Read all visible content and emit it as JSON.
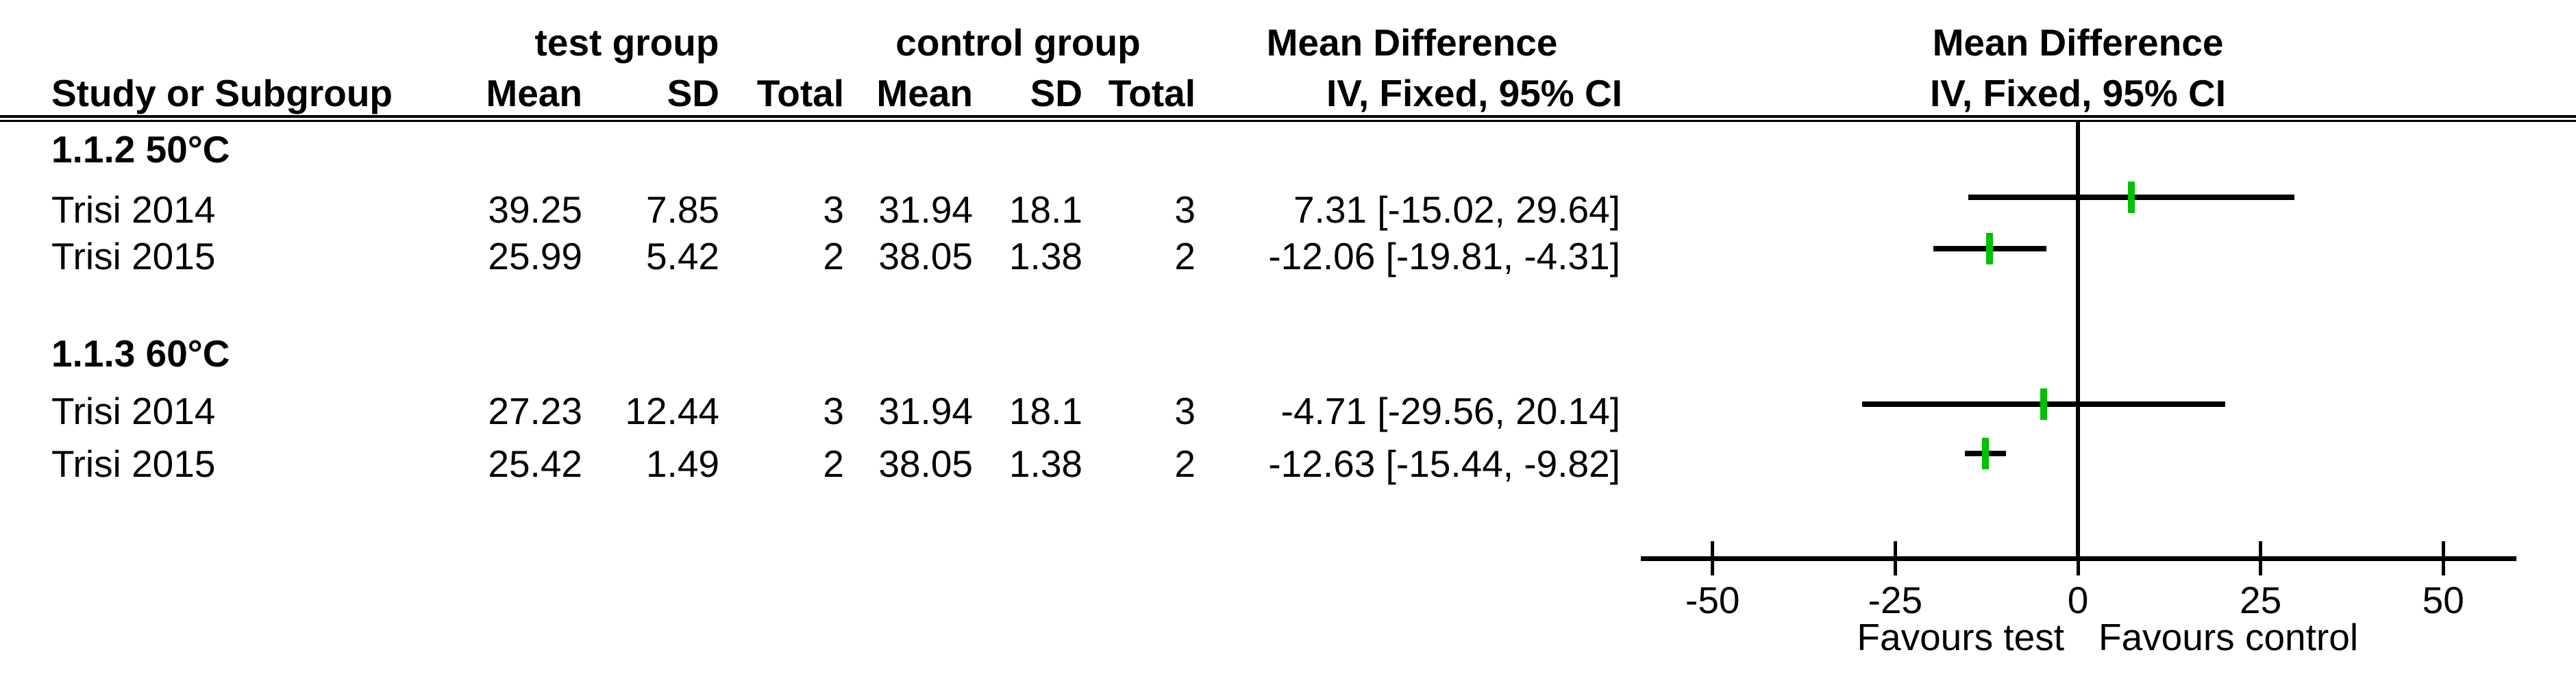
{
  "header": {
    "group_test": "test group",
    "group_control": "control group",
    "effect_left": "Mean Difference",
    "effect_right": "Mean Difference",
    "col_study": "Study or Subgroup",
    "col_mean": "Mean",
    "col_sd": "SD",
    "col_total": "Total",
    "col_ci_left": "IV, Fixed, 95% CI",
    "col_ci_right": "IV, Fixed, 95% CI"
  },
  "subgroups": [
    {
      "label": "1.1.2 50°C",
      "rows": [
        {
          "study": "Trisi 2014",
          "test_mean": "39.25",
          "test_sd": "7.85",
          "test_total": "3",
          "ctrl_mean": "31.94",
          "ctrl_sd": "18.1",
          "ctrl_total": "3",
          "ci": "7.31 [-15.02, 29.64]"
        },
        {
          "study": "Trisi 2015",
          "test_mean": "25.99",
          "test_sd": "5.42",
          "test_total": "2",
          "ctrl_mean": "38.05",
          "ctrl_sd": "1.38",
          "ctrl_total": "2",
          "ci": "-12.06 [-19.81, -4.31]"
        }
      ]
    },
    {
      "label": "1.1.3 60°C",
      "rows": [
        {
          "study": "Trisi 2014",
          "test_mean": "27.23",
          "test_sd": "12.44",
          "test_total": "3",
          "ctrl_mean": "31.94",
          "ctrl_sd": "18.1",
          "ctrl_total": "3",
          "ci": "-4.71 [-29.56, 20.14]"
        },
        {
          "study": "Trisi 2015",
          "test_mean": "25.42",
          "test_sd": "1.49",
          "test_total": "2",
          "ctrl_mean": "38.05",
          "ctrl_sd": "1.38",
          "ctrl_total": "2",
          "ci": "-12.63 [-15.44, -9.82]"
        }
      ]
    }
  ],
  "chart_data": {
    "type": "scatter",
    "subtype": "forest-plot",
    "title": "Mean Difference",
    "model": "IV, Fixed, 95% CI",
    "points": [
      {
        "label": "Trisi 2014",
        "subgroup": "1.1.2 50°C",
        "md": 7.31,
        "ci_low": -15.02,
        "ci_high": 29.64
      },
      {
        "label": "Trisi 2015",
        "subgroup": "1.1.2 50°C",
        "md": -12.06,
        "ci_low": -19.81,
        "ci_high": -4.31
      },
      {
        "label": "Trisi 2014",
        "subgroup": "1.1.3 60°C",
        "md": -4.71,
        "ci_low": -29.56,
        "ci_high": 20.14
      },
      {
        "label": "Trisi 2015",
        "subgroup": "1.1.3 60°C",
        "md": -12.63,
        "ci_low": -15.44,
        "ci_high": -9.82
      }
    ],
    "xticks": [
      -50,
      -25,
      0,
      25,
      50
    ],
    "xlim": [
      -60,
      60
    ],
    "xlabel_left": "Favours test",
    "xlabel_right": "Favours control",
    "grid": false,
    "colors": {
      "marker": "#00c000",
      "line": "#000000"
    }
  }
}
